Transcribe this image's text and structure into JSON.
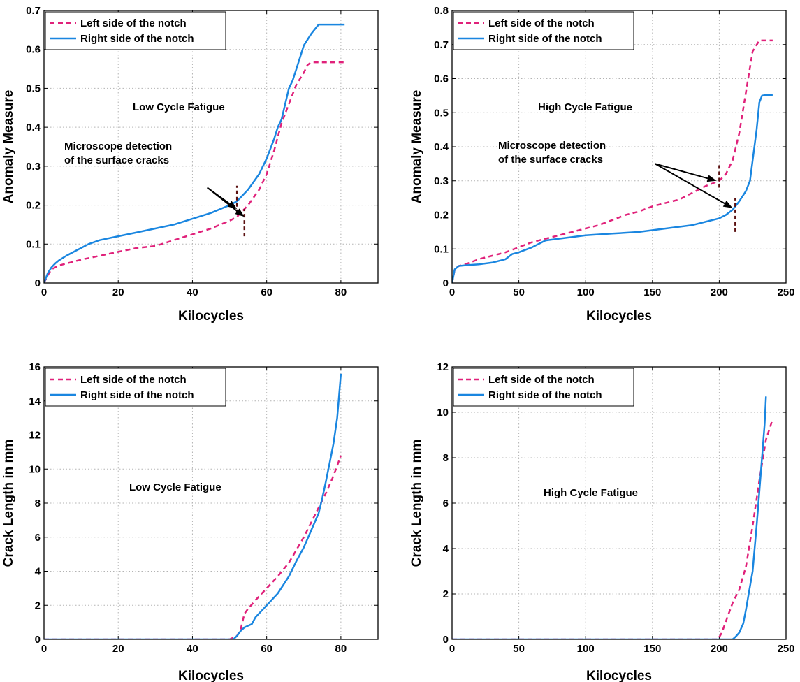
{
  "figure": {
    "legend_entries": [
      "Left side of the notch",
      "Right side of the notch"
    ],
    "colors": {
      "left": "#e0217a",
      "right": "#1a86e0",
      "marker": "#5a1010",
      "grid": "#b3b3b3"
    }
  },
  "chart_data": [
    {
      "type": "line",
      "title": "",
      "annotation": "Low Cycle Fatigue",
      "note": [
        "Microscope detection",
        "of the surface cracks"
      ],
      "xlabel": "Kilocycles",
      "ylabel": "Anomaly Measure",
      "xlim": [
        0,
        90
      ],
      "ylim": [
        0,
        0.7
      ],
      "xticks": [
        0,
        20,
        40,
        60,
        80
      ],
      "yticks": [
        0,
        0.1,
        0.2,
        0.3,
        0.4,
        0.5,
        0.6,
        0.7
      ],
      "ytick_labels": [
        "0",
        "0.1",
        "0.2",
        "0.3",
        "0.4",
        "0.5",
        "0.6",
        "0.7"
      ],
      "grid": true,
      "legend": "top-left",
      "series": [
        {
          "name": "Left side of the notch",
          "style": "dashed",
          "x": [
            0,
            1,
            2,
            4,
            6,
            8,
            10,
            15,
            20,
            25,
            30,
            35,
            40,
            45,
            50,
            52,
            55,
            58,
            60,
            62,
            64,
            66,
            68,
            70,
            71,
            72,
            81
          ],
          "y": [
            0,
            0.02,
            0.035,
            0.045,
            0.05,
            0.055,
            0.06,
            0.07,
            0.08,
            0.09,
            0.095,
            0.11,
            0.125,
            0.14,
            0.16,
            0.17,
            0.2,
            0.24,
            0.28,
            0.34,
            0.41,
            0.46,
            0.51,
            0.54,
            0.56,
            0.567,
            0.567
          ]
        },
        {
          "name": "Right side of the notch",
          "style": "solid",
          "x": [
            0,
            1,
            2,
            3,
            4,
            6,
            8,
            10,
            12,
            15,
            20,
            25,
            30,
            35,
            40,
            45,
            50,
            52,
            55,
            58,
            60,
            62,
            63,
            64,
            65,
            66,
            67,
            68,
            69,
            70,
            72,
            74,
            81
          ],
          "y": [
            0,
            0.025,
            0.04,
            0.05,
            0.058,
            0.07,
            0.08,
            0.09,
            0.1,
            0.11,
            0.12,
            0.13,
            0.14,
            0.15,
            0.165,
            0.18,
            0.2,
            0.21,
            0.24,
            0.28,
            0.32,
            0.37,
            0.4,
            0.42,
            0.46,
            0.5,
            0.52,
            0.55,
            0.58,
            0.61,
            0.64,
            0.664,
            0.664
          ]
        }
      ],
      "markers": [
        {
          "x": 52,
          "y1": 0.18,
          "y2": 0.25
        },
        {
          "x": 54,
          "y1": 0.12,
          "y2": 0.19
        }
      ],
      "arrows": [
        {
          "from": [
            44,
            0.245
          ],
          "to": [
            52,
            0.19
          ]
        },
        {
          "from": [
            44,
            0.245
          ],
          "to": [
            54,
            0.17
          ]
        }
      ]
    },
    {
      "type": "line",
      "title": "",
      "annotation": "High Cycle Fatigue",
      "note": [
        "Microscope detection",
        "of the surface cracks"
      ],
      "xlabel": "Kilocycles",
      "ylabel": "Anomaly Measure",
      "xlim": [
        0,
        250
      ],
      "ylim": [
        0,
        0.8
      ],
      "xticks": [
        0,
        50,
        100,
        150,
        200,
        250
      ],
      "yticks": [
        0,
        0.1,
        0.2,
        0.3,
        0.4,
        0.5,
        0.6,
        0.7,
        0.8
      ],
      "ytick_labels": [
        "0",
        "0.1",
        "0.2",
        "0.3",
        "0.4",
        "0.5",
        "0.6",
        "0.7",
        "0.8"
      ],
      "grid": true,
      "legend": "top-left",
      "series": [
        {
          "name": "Left side of the notch",
          "style": "dashed",
          "x": [
            0,
            2,
            5,
            10,
            20,
            30,
            40,
            50,
            60,
            70,
            80,
            90,
            100,
            110,
            120,
            130,
            140,
            150,
            160,
            170,
            180,
            190,
            200,
            205,
            210,
            215,
            220,
            225,
            230,
            240
          ],
          "y": [
            0,
            0.04,
            0.05,
            0.055,
            0.07,
            0.08,
            0.09,
            0.105,
            0.12,
            0.13,
            0.14,
            0.15,
            0.16,
            0.17,
            0.185,
            0.2,
            0.21,
            0.225,
            0.235,
            0.245,
            0.265,
            0.285,
            0.3,
            0.32,
            0.36,
            0.44,
            0.56,
            0.68,
            0.712,
            0.712
          ]
        },
        {
          "name": "Right side of the notch",
          "style": "solid",
          "x": [
            0,
            2,
            5,
            10,
            20,
            30,
            40,
            45,
            50,
            60,
            70,
            80,
            90,
            100,
            120,
            140,
            160,
            180,
            200,
            205,
            210,
            215,
            220,
            223,
            225,
            228,
            230,
            232,
            235,
            240
          ],
          "y": [
            0,
            0.04,
            0.05,
            0.052,
            0.055,
            0.06,
            0.07,
            0.085,
            0.09,
            0.105,
            0.125,
            0.13,
            0.135,
            0.14,
            0.145,
            0.15,
            0.16,
            0.17,
            0.19,
            0.2,
            0.215,
            0.24,
            0.27,
            0.3,
            0.36,
            0.45,
            0.53,
            0.55,
            0.552,
            0.552
          ]
        }
      ],
      "markers": [
        {
          "x": 200,
          "y1": 0.28,
          "y2": 0.35
        },
        {
          "x": 212,
          "y1": 0.15,
          "y2": 0.25
        }
      ],
      "arrows": [
        {
          "from": [
            152,
            0.35
          ],
          "to": [
            198,
            0.3
          ]
        },
        {
          "from": [
            152,
            0.35
          ],
          "to": [
            210,
            0.22
          ]
        }
      ]
    },
    {
      "type": "line",
      "title": "",
      "annotation": "Low Cycle Fatigue",
      "xlabel": "Kilocycles",
      "ylabel": "Crack Length in mm",
      "xlim": [
        0,
        90
      ],
      "ylim": [
        0,
        16
      ],
      "xticks": [
        0,
        20,
        40,
        60,
        80
      ],
      "yticks": [
        0,
        2,
        4,
        6,
        8,
        10,
        12,
        14,
        16
      ],
      "ytick_labels": [
        "0",
        "2",
        "4",
        "6",
        "8",
        "10",
        "12",
        "14",
        "16"
      ],
      "grid": true,
      "legend": "top-left",
      "series": [
        {
          "name": "Left side of the notch",
          "style": "dashed",
          "x": [
            0,
            10,
            20,
            30,
            40,
            50,
            52,
            53,
            54,
            55,
            57,
            60,
            63,
            66,
            70,
            73,
            76,
            78,
            80
          ],
          "y": [
            0,
            0,
            0,
            0,
            0,
            0,
            0.2,
            0.6,
            1.5,
            1.8,
            2.3,
            3,
            3.7,
            4.5,
            6,
            7.3,
            8.6,
            9.6,
            10.8
          ]
        },
        {
          "name": "Right side of the notch",
          "style": "solid",
          "x": [
            0,
            10,
            20,
            30,
            40,
            50,
            51,
            52,
            53,
            54,
            55,
            56,
            57,
            60,
            63,
            66,
            68,
            70,
            72,
            74,
            75,
            76,
            77,
            78,
            79,
            80
          ],
          "y": [
            0,
            0,
            0,
            0,
            0,
            0,
            0,
            0.2,
            0.5,
            0.7,
            0.8,
            0.9,
            1.3,
            2,
            2.7,
            3.7,
            4.6,
            5.4,
            6.4,
            7.4,
            8.3,
            9.3,
            10.4,
            11.5,
            13,
            15.6
          ]
        }
      ]
    },
    {
      "type": "line",
      "title": "",
      "annotation": "High Cycle Fatigue",
      "xlabel": "Kilocycles",
      "ylabel": "Crack Length in mm",
      "xlim": [
        0,
        250
      ],
      "ylim": [
        0,
        12
      ],
      "xticks": [
        0,
        50,
        100,
        150,
        200,
        250
      ],
      "yticks": [
        0,
        2,
        4,
        6,
        8,
        10,
        12
      ],
      "ytick_labels": [
        "0",
        "2",
        "4",
        "6",
        "8",
        "10",
        "12"
      ],
      "grid": true,
      "legend": "top-left",
      "series": [
        {
          "name": "Left side of the notch",
          "style": "dashed",
          "x": [
            0,
            10,
            50,
            100,
            150,
            199,
            200,
            202,
            205,
            210,
            215,
            220,
            225,
            230,
            235,
            240
          ],
          "y": [
            0,
            0,
            0,
            0,
            0,
            0,
            0.1,
            0.3,
            0.8,
            1.6,
            2.2,
            3.2,
            5,
            7,
            8.8,
            9.7
          ]
        },
        {
          "name": "Right side of the notch",
          "style": "solid",
          "x": [
            0,
            50,
            100,
            150,
            200,
            210,
            212,
            215,
            218,
            220,
            222,
            225,
            228,
            230,
            232,
            234,
            235
          ],
          "y": [
            0,
            0,
            0,
            0,
            0,
            0,
            0.1,
            0.3,
            0.7,
            1.3,
            2,
            3,
            5,
            6.5,
            8,
            9.5,
            10.7
          ]
        }
      ]
    }
  ]
}
